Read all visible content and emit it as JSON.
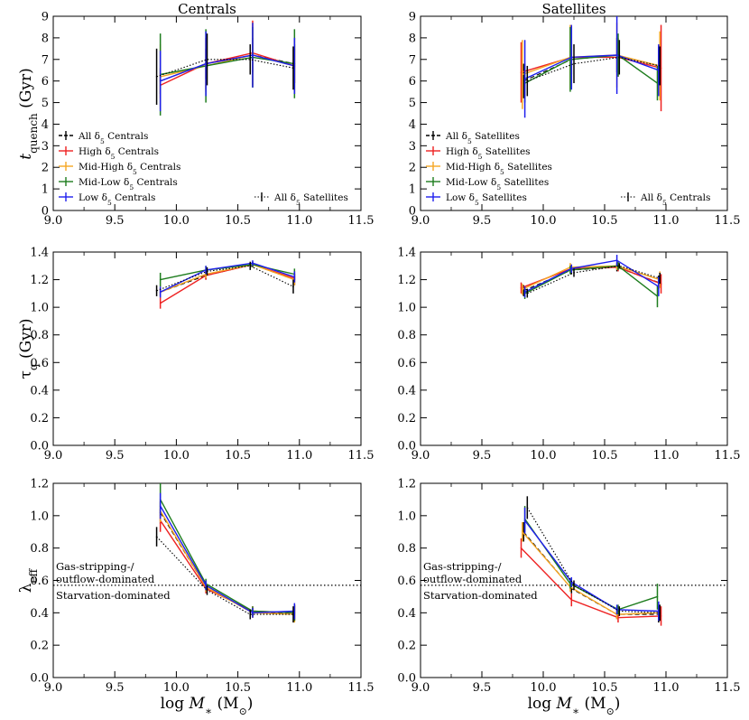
{
  "figure": {
    "col_titles": [
      "Centrals",
      "Satellites"
    ],
    "xlabel": "log M∗ (M⊙)",
    "ylabels": {
      "tquench": "t quench (Gyr)",
      "tauq": "τ q (Gyr)",
      "lambda": "λ eff"
    }
  },
  "colors": {
    "all": "#000000",
    "high": "#ee2222",
    "midhigh": "#f5a623",
    "midlow": "#1e7d1e",
    "low": "#1f1fee",
    "dotted": "#000000"
  },
  "chart_data": [
    {
      "type": "line",
      "panel": "centrals-tquench",
      "title": "Centrals",
      "xlim": [
        9.0,
        11.5
      ],
      "ylim": [
        0,
        9
      ],
      "xticks": [
        "9.0",
        "9.5",
        "10.0",
        "10.5",
        "11.0",
        "11.5"
      ],
      "yticks": [
        "0",
        "1",
        "2",
        "3",
        "4",
        "5",
        "6",
        "7",
        "8",
        "9"
      ],
      "legend": {
        "placement": "bottom-left",
        "entries": [
          "All δ5 Centrals",
          "High δ5 Centrals",
          "Mid-High δ5 Centrals",
          "Mid-Low δ5 Centrals",
          "Low δ5 Centrals"
        ],
        "extra_entry": "All δ5 Satellites"
      },
      "series": [
        {
          "name": "All δ5 Centrals",
          "key": "all",
          "style": "dashed",
          "x": [
            9.87,
            10.24,
            10.62,
            10.96
          ],
          "y": [
            6.0,
            6.8,
            7.2,
            6.8
          ],
          "err": [
            0.6,
            0.7,
            0.8,
            0.9
          ]
        },
        {
          "name": "High δ5 Centrals",
          "key": "high",
          "style": "solid",
          "x": [
            9.87,
            10.24,
            10.62,
            10.96
          ],
          "y": [
            5.8,
            6.8,
            7.3,
            6.7
          ],
          "err": [
            0.6,
            1.2,
            1.5,
            0.8
          ]
        },
        {
          "name": "Mid-High δ5 Centrals",
          "key": "midhigh",
          "style": "solid",
          "x": [
            9.87,
            10.24,
            10.62,
            10.96
          ],
          "y": [
            6.2,
            6.7,
            7.2,
            6.7
          ],
          "err": [
            1.5,
            1.2,
            1.5,
            1.3
          ]
        },
        {
          "name": "Mid-Low δ5 Centrals",
          "key": "midlow",
          "style": "solid",
          "x": [
            9.87,
            10.24,
            10.62,
            10.96
          ],
          "y": [
            6.3,
            6.7,
            7.1,
            6.8
          ],
          "err": [
            1.9,
            1.7,
            1.4,
            1.6
          ]
        },
        {
          "name": "Low δ5 Centrals",
          "key": "low",
          "style": "solid",
          "x": [
            9.87,
            10.24,
            10.62,
            10.96
          ],
          "y": [
            6.0,
            6.8,
            7.2,
            6.7
          ],
          "err": [
            1.4,
            1.5,
            1.5,
            1.3
          ]
        },
        {
          "name": "All δ5 Satellites",
          "key": "dotted",
          "style": "dotted",
          "x": [
            9.84,
            10.25,
            10.6,
            10.95
          ],
          "y": [
            6.2,
            7.0,
            7.0,
            6.6
          ],
          "err": [
            1.3,
            1.2,
            0.7,
            1.0
          ]
        }
      ]
    },
    {
      "type": "line",
      "panel": "satellites-tquench",
      "title": "Satellites",
      "xlim": [
        9.0,
        11.5
      ],
      "ylim": [
        0,
        9
      ],
      "xticks": [
        "9.0",
        "9.5",
        "10.0",
        "10.5",
        "11.0",
        "11.5"
      ],
      "yticks": [
        "0",
        "1",
        "2",
        "3",
        "4",
        "5",
        "6",
        "7",
        "8",
        "9"
      ],
      "legend": {
        "placement": "bottom-left",
        "entries": [
          "All δ5 Satellites",
          "High δ5 Satellites",
          "Mid-High δ5 Satellites",
          "Mid-Low δ5 Satellites",
          "Low δ5 Satellites"
        ],
        "extra_entry": "All δ5 Centrals"
      },
      "series": [
        {
          "name": "All δ5 Satellites",
          "key": "all",
          "style": "dashed",
          "x": [
            9.84,
            10.23,
            10.6,
            10.94
          ],
          "y": [
            6.0,
            7.0,
            7.2,
            6.7
          ],
          "err": [
            0.8,
            0.7,
            0.8,
            0.9
          ]
        },
        {
          "name": "High δ5 Satellites",
          "key": "high",
          "style": "solid",
          "x": [
            9.82,
            10.23,
            10.61,
            10.96
          ],
          "y": [
            6.4,
            7.1,
            7.1,
            6.6
          ],
          "err": [
            1.4,
            1.4,
            0.9,
            2.0
          ]
        },
        {
          "name": "Mid-High δ5 Satellites",
          "key": "midhigh",
          "style": "solid",
          "x": [
            9.83,
            10.22,
            10.6,
            10.95
          ],
          "y": [
            6.3,
            7.1,
            7.2,
            6.7
          ],
          "err": [
            1.6,
            1.5,
            1.5,
            1.6
          ]
        },
        {
          "name": "Mid-Low δ5 Satellites",
          "key": "midlow",
          "style": "solid",
          "x": [
            9.85,
            10.22,
            10.61,
            10.93
          ],
          "y": [
            5.9,
            7.0,
            7.2,
            5.9
          ],
          "err": [
            0.9,
            1.5,
            1.0,
            0.8
          ]
        },
        {
          "name": "Low δ5 Satellites",
          "key": "low",
          "style": "solid",
          "x": [
            9.85,
            10.23,
            10.6,
            10.94
          ],
          "y": [
            6.1,
            7.1,
            7.2,
            6.5
          ],
          "err": [
            1.8,
            1.5,
            1.8,
            1.2
          ]
        },
        {
          "name": "All δ5 Centrals",
          "key": "dotted",
          "style": "dotted",
          "x": [
            9.87,
            10.25,
            10.62,
            10.95
          ],
          "y": [
            6.0,
            6.8,
            7.1,
            6.7
          ],
          "err": [
            0.7,
            0.9,
            0.8,
            0.9
          ]
        }
      ]
    },
    {
      "type": "line",
      "panel": "centrals-tauq",
      "xlim": [
        9.0,
        11.5
      ],
      "ylim": [
        0,
        1.4
      ],
      "xticks": [
        "9.0",
        "9.5",
        "10.0",
        "10.5",
        "11.0",
        "11.5"
      ],
      "yticks": [
        "0.0",
        "0.2",
        "0.4",
        "0.6",
        "0.8",
        "1.0",
        "1.2",
        "1.4"
      ],
      "series": [
        {
          "name": "All δ5 Centrals",
          "key": "all",
          "style": "dashed",
          "x": [
            9.87,
            10.24,
            10.62,
            10.96
          ],
          "y": [
            1.11,
            1.23,
            1.31,
            1.2
          ],
          "err": [
            0.03,
            0.03,
            0.02,
            0.04
          ]
        },
        {
          "name": "High δ5 Centrals",
          "key": "high",
          "style": "solid",
          "x": [
            9.87,
            10.24,
            10.62,
            10.96
          ],
          "y": [
            1.03,
            1.23,
            1.31,
            1.21
          ],
          "err": [
            0.04,
            0.03,
            0.02,
            0.05
          ]
        },
        {
          "name": "Mid-High δ5 Centrals",
          "key": "midhigh",
          "style": "solid",
          "x": [
            9.87,
            10.24,
            10.62,
            10.96
          ],
          "y": [
            1.11,
            1.24,
            1.31,
            1.2
          ],
          "err": [
            0.04,
            0.03,
            0.02,
            0.04
          ]
        },
        {
          "name": "Mid-Low δ5 Centrals",
          "key": "midlow",
          "style": "solid",
          "x": [
            9.87,
            10.24,
            10.62,
            10.96
          ],
          "y": [
            1.2,
            1.27,
            1.31,
            1.24
          ],
          "err": [
            0.05,
            0.03,
            0.02,
            0.04
          ]
        },
        {
          "name": "Low δ5 Centrals",
          "key": "low",
          "style": "solid",
          "x": [
            9.87,
            10.24,
            10.62,
            10.96
          ],
          "y": [
            1.11,
            1.27,
            1.32,
            1.22
          ],
          "err": [
            0.04,
            0.03,
            0.02,
            0.04
          ]
        },
        {
          "name": "All δ5 Satellites",
          "key": "dotted",
          "style": "dotted",
          "x": [
            9.84,
            10.25,
            10.6,
            10.95
          ],
          "y": [
            1.12,
            1.26,
            1.3,
            1.15
          ],
          "err": [
            0.04,
            0.03,
            0.03,
            0.05
          ]
        }
      ]
    },
    {
      "type": "line",
      "panel": "satellites-tauq",
      "xlim": [
        9.0,
        11.5
      ],
      "ylim": [
        0,
        1.4
      ],
      "xticks": [
        "9.0",
        "9.5",
        "10.0",
        "10.5",
        "11.0",
        "11.5"
      ],
      "yticks": [
        "0.0",
        "0.2",
        "0.4",
        "0.6",
        "0.8",
        "1.0",
        "1.2",
        "1.4"
      ],
      "series": [
        {
          "name": "All δ5 Satellites",
          "key": "all",
          "style": "dashed",
          "x": [
            9.84,
            10.23,
            10.6,
            10.94
          ],
          "y": [
            1.12,
            1.27,
            1.29,
            1.18
          ],
          "err": [
            0.04,
            0.03,
            0.03,
            0.05
          ]
        },
        {
          "name": "High δ5 Satellites",
          "key": "high",
          "style": "solid",
          "x": [
            9.82,
            10.23,
            10.61,
            10.96
          ],
          "y": [
            1.14,
            1.28,
            1.29,
            1.17
          ],
          "err": [
            0.04,
            0.03,
            0.03,
            0.07
          ]
        },
        {
          "name": "Mid-High δ5 Satellites",
          "key": "midhigh",
          "style": "solid",
          "x": [
            9.83,
            10.22,
            10.6,
            10.95
          ],
          "y": [
            1.13,
            1.29,
            1.3,
            1.2
          ],
          "err": [
            0.04,
            0.03,
            0.03,
            0.06
          ]
        },
        {
          "name": "Mid-Low δ5 Satellites",
          "key": "midlow",
          "style": "solid",
          "x": [
            9.85,
            10.22,
            10.61,
            10.93
          ],
          "y": [
            1.1,
            1.27,
            1.3,
            1.08
          ],
          "err": [
            0.04,
            0.03,
            0.03,
            0.08
          ]
        },
        {
          "name": "Low δ5 Satellites",
          "key": "low",
          "style": "solid",
          "x": [
            9.85,
            10.23,
            10.6,
            10.94
          ],
          "y": [
            1.11,
            1.28,
            1.34,
            1.15
          ],
          "err": [
            0.04,
            0.03,
            0.04,
            0.07
          ]
        },
        {
          "name": "All δ5 Centrals",
          "key": "dotted",
          "style": "dotted",
          "x": [
            9.87,
            10.25,
            10.62,
            10.95
          ],
          "y": [
            1.1,
            1.25,
            1.3,
            1.21
          ],
          "err": [
            0.03,
            0.03,
            0.02,
            0.04
          ]
        }
      ]
    },
    {
      "type": "line",
      "panel": "centrals-lambda",
      "xlim": [
        9.0,
        11.5
      ],
      "ylim": [
        0,
        1.2
      ],
      "xticks": [
        "9.0",
        "9.5",
        "10.0",
        "10.5",
        "11.0",
        "11.5"
      ],
      "yticks": [
        "0.0",
        "0.2",
        "0.4",
        "0.6",
        "0.8",
        "1.0",
        "1.2"
      ],
      "hline": 0.57,
      "annotations": [
        "Gas-stripping-/",
        "outflow-dominated",
        "Starvation-dominated"
      ],
      "series": [
        {
          "name": "All δ5 Centrals",
          "key": "all",
          "style": "dashed",
          "x": [
            9.87,
            10.24,
            10.62,
            10.96
          ],
          "y": [
            1.02,
            0.56,
            0.4,
            0.4
          ],
          "err": [
            0.07,
            0.03,
            0.03,
            0.05
          ]
        },
        {
          "name": "High δ5 Centrals",
          "key": "high",
          "style": "solid",
          "x": [
            9.87,
            10.24,
            10.62,
            10.96
          ],
          "y": [
            0.97,
            0.55,
            0.41,
            0.4
          ],
          "err": [
            0.07,
            0.03,
            0.03,
            0.05
          ]
        },
        {
          "name": "Mid-High δ5 Centrals",
          "key": "midhigh",
          "style": "solid",
          "x": [
            9.87,
            10.24,
            10.62,
            10.96
          ],
          "y": [
            1.03,
            0.56,
            0.4,
            0.39
          ],
          "err": [
            0.07,
            0.03,
            0.03,
            0.05
          ]
        },
        {
          "name": "Mid-Low δ5 Centrals",
          "key": "midlow",
          "style": "solid",
          "x": [
            9.87,
            10.24,
            10.62,
            10.96
          ],
          "y": [
            1.1,
            0.58,
            0.41,
            0.4
          ],
          "err": [
            0.1,
            0.03,
            0.03,
            0.05
          ]
        },
        {
          "name": "Low δ5 Centrals",
          "key": "low",
          "style": "solid",
          "x": [
            9.87,
            10.24,
            10.62,
            10.96
          ],
          "y": [
            1.06,
            0.57,
            0.4,
            0.41
          ],
          "err": [
            0.08,
            0.03,
            0.03,
            0.05
          ]
        },
        {
          "name": "All δ5 Satellites",
          "key": "dotted",
          "style": "dotted",
          "x": [
            9.84,
            10.25,
            10.6,
            10.95
          ],
          "y": [
            0.87,
            0.54,
            0.39,
            0.39
          ],
          "err": [
            0.06,
            0.03,
            0.03,
            0.05
          ]
        }
      ]
    },
    {
      "type": "line",
      "panel": "satellites-lambda",
      "xlim": [
        9.0,
        11.5
      ],
      "ylim": [
        0,
        1.2
      ],
      "xticks": [
        "9.0",
        "9.5",
        "10.0",
        "10.5",
        "11.0",
        "11.5"
      ],
      "yticks": [
        "0.0",
        "0.2",
        "0.4",
        "0.6",
        "0.8",
        "1.0",
        "1.2"
      ],
      "hline": 0.57,
      "annotations": [
        "Gas-stripping-/",
        "outflow-dominated",
        "Starvation-dominated"
      ],
      "series": [
        {
          "name": "All δ5 Satellites",
          "key": "all",
          "style": "dashed",
          "x": [
            9.84,
            10.23,
            10.6,
            10.94
          ],
          "y": [
            0.9,
            0.55,
            0.39,
            0.39
          ],
          "err": [
            0.06,
            0.03,
            0.03,
            0.05
          ]
        },
        {
          "name": "High δ5 Satellites",
          "key": "high",
          "style": "solid",
          "x": [
            9.82,
            10.23,
            10.61,
            10.96
          ],
          "y": [
            0.8,
            0.48,
            0.37,
            0.38
          ],
          "err": [
            0.06,
            0.04,
            0.03,
            0.06
          ]
        },
        {
          "name": "Mid-High δ5 Satellites",
          "key": "midhigh",
          "style": "solid",
          "x": [
            9.83,
            10.22,
            10.6,
            10.95
          ],
          "y": [
            0.9,
            0.56,
            0.39,
            0.4
          ],
          "err": [
            0.06,
            0.03,
            0.03,
            0.05
          ]
        },
        {
          "name": "Mid-Low δ5 Satellites",
          "key": "midlow",
          "style": "solid",
          "x": [
            9.85,
            10.22,
            10.61,
            10.93
          ],
          "y": [
            0.98,
            0.58,
            0.42,
            0.5
          ],
          "err": [
            0.08,
            0.03,
            0.03,
            0.08
          ]
        },
        {
          "name": "Low δ5 Satellites",
          "key": "low",
          "style": "solid",
          "x": [
            9.85,
            10.23,
            10.6,
            10.94
          ],
          "y": [
            0.97,
            0.59,
            0.42,
            0.41
          ],
          "err": [
            0.08,
            0.03,
            0.03,
            0.06
          ]
        },
        {
          "name": "All δ5 Centrals",
          "key": "dotted",
          "style": "dotted",
          "x": [
            9.87,
            10.25,
            10.62,
            10.95
          ],
          "y": [
            1.05,
            0.57,
            0.41,
            0.4
          ],
          "err": [
            0.07,
            0.03,
            0.03,
            0.05
          ]
        }
      ]
    }
  ]
}
